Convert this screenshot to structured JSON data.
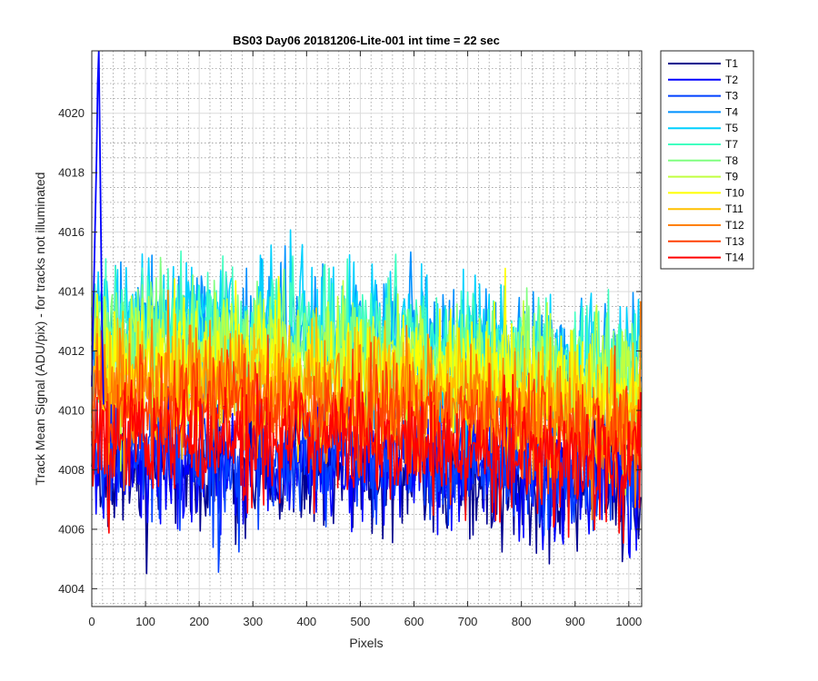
{
  "chart_data": {
    "type": "line",
    "title": "BS03 Day06 20181206-Lite-001 int time = 22 sec",
    "xlabel": "Pixels",
    "ylabel": "Track Mean Signal (ADU/pix) - for tracks not illuminated",
    "xlim": [
      0,
      1024
    ],
    "ylim": [
      4003.4,
      4022.1
    ],
    "xticks": [
      0,
      100,
      200,
      300,
      400,
      500,
      600,
      700,
      800,
      900,
      1000
    ],
    "yticks": [
      4004,
      4006,
      4008,
      4010,
      4012,
      4014,
      4016,
      4018,
      4020
    ],
    "xtick_labels": [
      "0",
      "100",
      "200",
      "300",
      "400",
      "500",
      "600",
      "700",
      "800",
      "900",
      "1000"
    ],
    "ytick_labels": [
      "4004",
      "4006",
      "4008",
      "4010",
      "4012",
      "4014",
      "4016",
      "4018",
      "4020"
    ],
    "grid": true,
    "minor_grid": true,
    "legend_position": "outside-top-right",
    "series": [
      {
        "name": "T1",
        "color": "#00008f",
        "mean": 4007.8,
        "noise": 1.05,
        "trend": -0.4
      },
      {
        "name": "T2",
        "color": "#0000ff",
        "mean": 4008.1,
        "noise": 1.05,
        "trend": -0.4
      },
      {
        "name": "T3",
        "color": "#0040ff",
        "mean": 4008.4,
        "noise": 1.05,
        "trend": -0.4
      },
      {
        "name": "T4",
        "color": "#0090ff",
        "mean": 4012.6,
        "noise": 1.15,
        "trend": -1.3
      },
      {
        "name": "T5",
        "color": "#00d0ff",
        "mean": 4013.0,
        "noise": 1.15,
        "trend": -1.4
      },
      {
        "name": "T7",
        "color": "#40ffc0",
        "mean": 4012.7,
        "noise": 1.1,
        "trend": -1.3
      },
      {
        "name": "T8",
        "color": "#80ff80",
        "mean": 4012.3,
        "noise": 1.05,
        "trend": -1.2
      },
      {
        "name": "T9",
        "color": "#c0ff40",
        "mean": 4011.9,
        "noise": 1.05,
        "trend": -1.2
      },
      {
        "name": "T10",
        "color": "#ffff00",
        "mean": 4011.4,
        "noise": 1.05,
        "trend": -1.1
      },
      {
        "name": "T11",
        "color": "#ffc000",
        "mean": 4010.9,
        "noise": 1.05,
        "trend": -1.0
      },
      {
        "name": "T12",
        "color": "#ff8000",
        "mean": 4010.5,
        "noise": 1.05,
        "trend": -1.0
      },
      {
        "name": "T13",
        "color": "#ff4000",
        "mean": 4010.0,
        "noise": 1.0,
        "trend": -0.9
      },
      {
        "name": "T14",
        "color": "#ff0000",
        "mean": 4008.9,
        "noise": 0.95,
        "trend": -0.6
      }
    ],
    "start_spike": {
      "series": "T2",
      "x": [
        0,
        3,
        6,
        9,
        11,
        13,
        16,
        19,
        22
      ],
      "y": [
        4010.8,
        4013.5,
        4016.0,
        4018.6,
        4021.0,
        4022.1,
        4017.5,
        4013.0,
        4010.2
      ]
    }
  }
}
